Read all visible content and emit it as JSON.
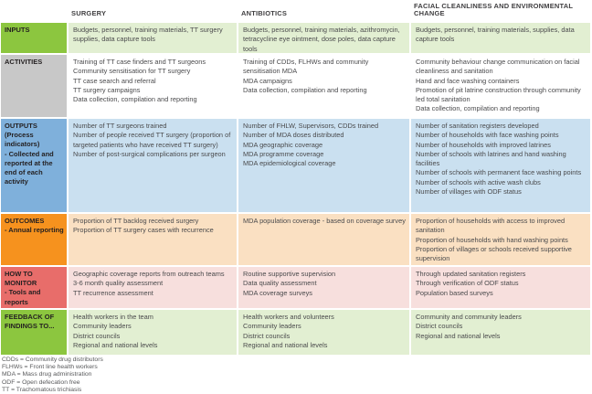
{
  "columns": [
    {
      "label": ""
    },
    {
      "label": "SURGERY"
    },
    {
      "label": "ANTIBIOTICS"
    },
    {
      "label": "FACIAL CLEANLINESS AND ENVIRONMENTAL CHANGE"
    }
  ],
  "rows": [
    {
      "label_lines": [
        "INPUTS"
      ],
      "label_bg": "#8CC63F",
      "cell_bg": "#E2EFD2",
      "cells": [
        [
          "Budgets, personnel, training materials, TT surgery supplies, data capture tools"
        ],
        [
          "Budgets, personnel, training materials, azithromycin, tetracycline eye ointment, dose poles, data capture tools"
        ],
        [
          "Budgets, personnel, training materials, supplies, data capture tools"
        ]
      ]
    },
    {
      "label_lines": [
        "ACTIVITIES"
      ],
      "label_bg": "#C8C8C8",
      "cell_bg": "#FFFFFF",
      "cells": [
        [
          "Training of TT case finders and TT surgeons",
          "Community sensitisation for TT surgery",
          "TT case search and referral",
          "TT surgery campaigns",
          "Data collection, compilation and reporting"
        ],
        [
          "Training of CDDs, FLHWs and community sensitisation MDA",
          "MDA campaigns",
          "Data collection, compilation and reporting"
        ],
        [
          "Community behaviour change communication on facial cleanliness and sanitation",
          "Hand and face washing containers",
          "Promotion of pit latrine construction through community led total sanitation",
          "Data collection, compilation and reporting"
        ]
      ]
    },
    {
      "label_lines": [
        "OUTPUTS",
        "(Process indicators)",
        "- Collected and reported at the end of each activity"
      ],
      "label_bg": "#7FB0DB",
      "cell_bg": "#CAE0F0",
      "cells": [
        [
          "Number of TT surgeons trained",
          "Number of people received TT surgery (proportion of targeted patients who have received TT surgery)",
          "Number of post-surgical complications per surgeon"
        ],
        [
          "Number of FHLW, Supervisors, CDDs trained",
          "Number of MDA doses distributed",
          "MDA geographic coverage",
          "MDA programme coverage",
          "MDA epidemiological coverage"
        ],
        [
          "Number of sanitation registers developed",
          "Number of households with face washing points",
          "Number of households with improved latrines",
          "Number of schools with latrines and hand washing facilities",
          "Number of schools with permanent face washing points",
          "Number of schools with active wash clubs",
          "Number of villages with ODF status"
        ]
      ]
    },
    {
      "label_lines": [
        "OUTCOMES",
        "- Annual reporting"
      ],
      "label_bg": "#F6921E",
      "cell_bg": "#FAE0C2",
      "cells": [
        [
          "Proportion of TT backlog received surgery",
          "Proportion of TT surgery cases with recurrence"
        ],
        [
          "MDA population coverage - based on coverage survey"
        ],
        [
          "Proportion of households with access to improved sanitation",
          "Proportion of households with hand washing points",
          "Proportion of villages or schools received supportive supervision"
        ]
      ]
    },
    {
      "label_lines": [
        "HOW TO MONITOR",
        "- Tools and reports"
      ],
      "label_bg": "#E86D6A",
      "cell_bg": "#F7DFDD",
      "cells": [
        [
          "Geographic coverage reports from outreach teams",
          "3-6 month quality assessment",
          "TT recurrence assessment"
        ],
        [
          "Routine supportive supervision",
          "Data quality assessment",
          "MDA coverage surveys"
        ],
        [
          "Through updated sanitation registers",
          "Through verification of ODF status",
          "Population based surveys"
        ]
      ]
    },
    {
      "label_lines": [
        "FEEDBACK OF FINDINGS TO..."
      ],
      "label_bg": "#8CC63F",
      "cell_bg": "#E2EFD2",
      "cells": [
        [
          "Health workers in the team",
          "Community leaders",
          "District councils",
          "Regional and national levels"
        ],
        [
          "Health workers and volunteers",
          "Community leaders",
          "District councils",
          "Regional and national levels"
        ],
        [
          "Community and community leaders",
          "District councils",
          "Regional and national levels"
        ]
      ]
    }
  ],
  "footnotes": [
    "CDDs = Community drug distributors",
    "FLHWs = Front line health workers",
    "MDA = Mass drug administration",
    "ODF = Open defecation free",
    "TT = Trachomatous trichiasis"
  ]
}
